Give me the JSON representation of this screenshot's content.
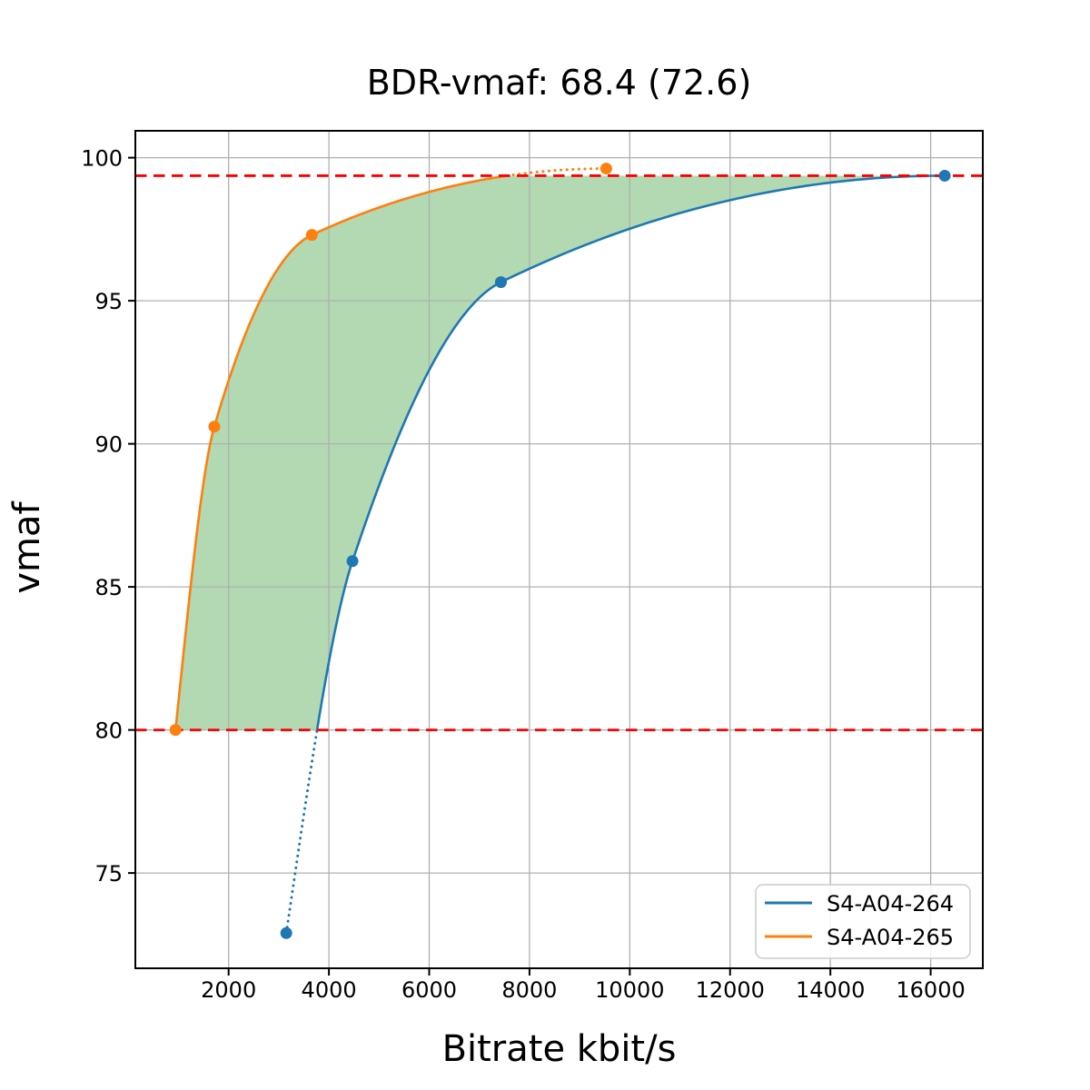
{
  "chart_data": {
    "type": "line",
    "title": "BDR-vmaf: 68.4 (72.6)",
    "xlabel": "Bitrate kbit/s",
    "ylabel": "vmaf",
    "xlim": [
      140,
      17040
    ],
    "ylim": [
      71.67,
      100.94
    ],
    "x_ticks": [
      2000,
      4000,
      6000,
      8000,
      10000,
      12000,
      14000,
      16000
    ],
    "y_ticks": [
      75,
      80,
      85,
      90,
      95,
      100
    ],
    "grid": true,
    "grid_color": "#b0b0b0",
    "series": [
      {
        "name": "S4-A04-264",
        "color": "#1f77b4",
        "points": [
          [
            3150,
            72.9
          ],
          [
            4470,
            85.9
          ],
          [
            7430,
            95.65
          ],
          [
            16280,
            99.37
          ]
        ]
      },
      {
        "name": "S4-A04-265",
        "color": "#ff7f0e",
        "points": [
          [
            941,
            80.0
          ],
          [
            1715,
            90.6
          ],
          [
            3660,
            97.3
          ],
          [
            9530,
            99.62
          ]
        ]
      }
    ],
    "integration_bounds": {
      "lower_vmaf": 80.0,
      "upper_vmaf": 99.37,
      "line_color": "#ff0000",
      "line_style": "dashed"
    },
    "shaded_region": {
      "color": "#008000",
      "opacity": 0.3
    },
    "legend": {
      "position": "lower right",
      "entries": [
        "S4-A04-264",
        "S4-A04-265"
      ]
    }
  }
}
